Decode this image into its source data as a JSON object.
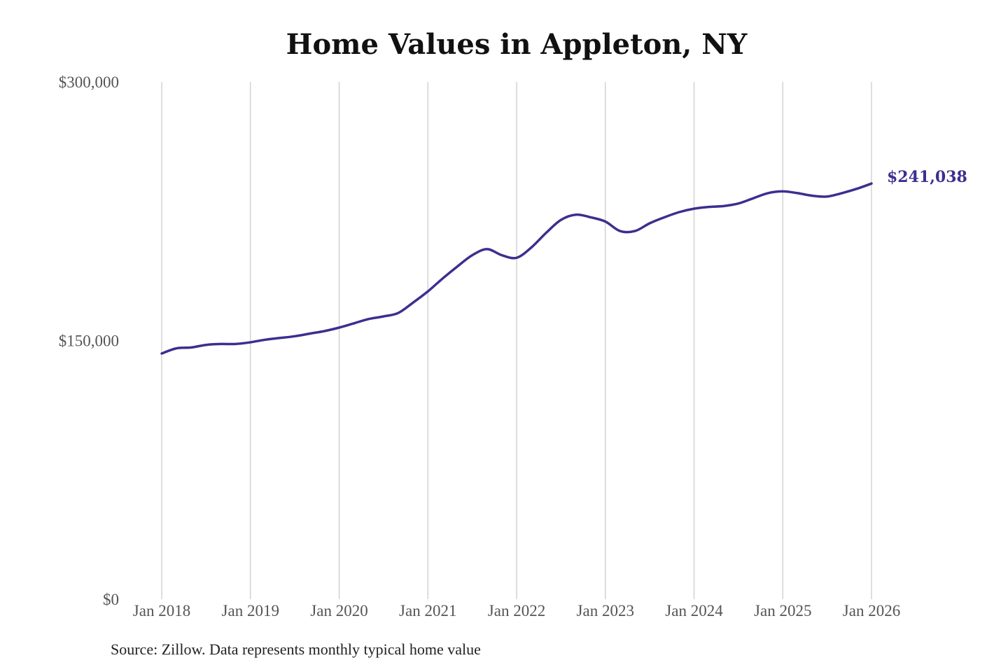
{
  "chart_data": {
    "type": "line",
    "title": "Home Values in Appleton, NY",
    "source": "Source: Zillow. Data represents monthly typical home value",
    "end_label": "$241,038",
    "ylim": [
      0,
      300000
    ],
    "y_ticks": [
      {
        "value": 0,
        "label": "$0"
      },
      {
        "value": 150000,
        "label": "$150,000"
      },
      {
        "value": 300000,
        "label": "$300,000"
      }
    ],
    "xlim": [
      "2018-01",
      "2026-01"
    ],
    "x_ticks": [
      {
        "value": "2018-01",
        "label": "Jan 2018"
      },
      {
        "value": "2019-01",
        "label": "Jan 2019"
      },
      {
        "value": "2020-01",
        "label": "Jan 2020"
      },
      {
        "value": "2021-01",
        "label": "Jan 2021"
      },
      {
        "value": "2022-01",
        "label": "Jan 2022"
      },
      {
        "value": "2023-01",
        "label": "Jan 2023"
      },
      {
        "value": "2024-01",
        "label": "Jan 2024"
      },
      {
        "value": "2025-01",
        "label": "Jan 2025"
      },
      {
        "value": "2026-01",
        "label": "Jan 2026"
      }
    ],
    "grid": {
      "vertical": true,
      "horizontal": false
    },
    "line_color": "#3b2f8f",
    "grid_color": "#c8c8c8",
    "series": [
      {
        "points": [
          [
            "2018-01",
            142500
          ],
          [
            "2018-03",
            145500
          ],
          [
            "2018-05",
            146000
          ],
          [
            "2018-07",
            147500
          ],
          [
            "2018-09",
            148000
          ],
          [
            "2018-11",
            148000
          ],
          [
            "2019-01",
            149000
          ],
          [
            "2019-03",
            150500
          ],
          [
            "2019-05",
            151500
          ],
          [
            "2019-07",
            152500
          ],
          [
            "2019-09",
            154000
          ],
          [
            "2019-11",
            155500
          ],
          [
            "2020-01",
            157500
          ],
          [
            "2020-03",
            160000
          ],
          [
            "2020-05",
            162500
          ],
          [
            "2020-07",
            164000
          ],
          [
            "2020-09",
            166000
          ],
          [
            "2020-11",
            172000
          ],
          [
            "2021-01",
            178500
          ],
          [
            "2021-03",
            186000
          ],
          [
            "2021-05",
            193000
          ],
          [
            "2021-07",
            199500
          ],
          [
            "2021-09",
            203000
          ],
          [
            "2021-11",
            199500
          ],
          [
            "2022-01",
            198000
          ],
          [
            "2022-03",
            204000
          ],
          [
            "2022-05",
            212500
          ],
          [
            "2022-07",
            220000
          ],
          [
            "2022-09",
            223000
          ],
          [
            "2022-11",
            221500
          ],
          [
            "2023-01",
            219000
          ],
          [
            "2023-03",
            213500
          ],
          [
            "2023-05",
            213500
          ],
          [
            "2023-07",
            218000
          ],
          [
            "2023-09",
            221500
          ],
          [
            "2023-11",
            224500
          ],
          [
            "2024-01",
            226500
          ],
          [
            "2024-03",
            227500
          ],
          [
            "2024-05",
            228000
          ],
          [
            "2024-07",
            229500
          ],
          [
            "2024-09",
            232500
          ],
          [
            "2024-11",
            235500
          ],
          [
            "2025-01",
            236500
          ],
          [
            "2025-03",
            235500
          ],
          [
            "2025-05",
            234000
          ],
          [
            "2025-07",
            233500
          ],
          [
            "2025-09",
            235500
          ],
          [
            "2025-11",
            238000
          ],
          [
            "2026-01",
            241038
          ]
        ]
      }
    ]
  }
}
